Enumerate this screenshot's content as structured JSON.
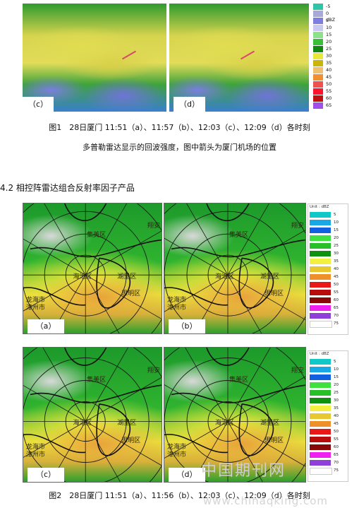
{
  "fig1": {
    "panels": [
      {
        "label": "（c）"
      },
      {
        "label": "（d）"
      }
    ],
    "legend_values": [
      "-5",
      "0 dBZ",
      "5",
      "10",
      "15",
      "20",
      "25",
      "30",
      "35",
      "40",
      "45",
      "50",
      "55",
      "60",
      "65"
    ],
    "legend_colors": [
      "#2ec4a8",
      "#a9a9d9",
      "#7e7ee2",
      "#c8c8f4",
      "#8ce28c",
      "#38c038",
      "#108810",
      "#e8e83a",
      "#c8b40a",
      "#eec070",
      "#f09030",
      "#f05050",
      "#ff1430",
      "#c01010",
      "#a050e8"
    ],
    "caption_line1": "图1　28日厦门 11:51（a）、11:57（b）、12:03（c）、12:09（d）各时刻",
    "caption_line2": "多普勒雷达显示的回波强度，图中箭头为厦门机场的位置"
  },
  "section_heading": "4.2 相控阵雷达组合反射率因子产品",
  "fig2": {
    "panels": [
      {
        "label": "（a）",
        "places": [
          "集美区",
          "翔安",
          "海沧区",
          "湖里区",
          "思明区",
          "龙海市",
          "漳州市"
        ]
      },
      {
        "label": "（b）",
        "places": [
          "集美区",
          "翔安",
          "海沧区",
          "湖里区",
          "思明区",
          "龙海市",
          "漳州市"
        ]
      },
      {
        "label": "（c）",
        "places": [
          "集美区",
          "翔安",
          "海沧区",
          "湖里区",
          "思明区",
          "龙海市",
          "漳州市"
        ]
      },
      {
        "label": "（d）",
        "places": [
          "集美区",
          "翔安",
          "海沧区",
          "湖里区",
          "思明区",
          "龙海市",
          "漳州市"
        ]
      }
    ],
    "legend_title": "Unit : dBZ",
    "legend_values": [
      "5",
      "10",
      "15",
      "20",
      "25",
      "30",
      "35",
      "40",
      "45",
      "50",
      "55",
      "60",
      "65",
      "70",
      "75"
    ],
    "legend_colors": [
      "#10c8c8",
      "#19a8e6",
      "#1060e0",
      "#40e040",
      "#28c028",
      "#109010",
      "#f4f040",
      "#e8c830",
      "#f09028",
      "#e81818",
      "#b80c0c",
      "#880808",
      "#f020f0",
      "#9040d8",
      "#ffffff"
    ],
    "caption": "图2　28日厦门 11:51（a）、11:56（b）、12:03（c）、12:09（d）各时刻"
  },
  "watermark": {
    "text_cn": "中国期刊网",
    "text_url": "www.chinaqking.com"
  }
}
